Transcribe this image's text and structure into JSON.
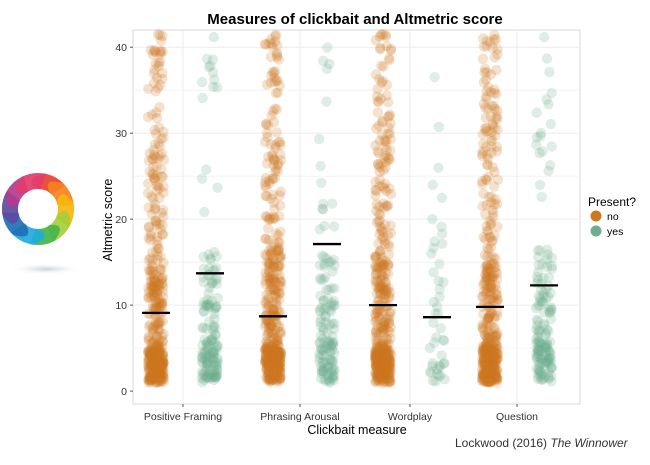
{
  "caption": {
    "author_year": "Lockwood (2016)",
    "journal": "The Winnower"
  },
  "logo": {
    "name": "altmetric-donut-logo",
    "colors": [
      "#e8412c",
      "#f58220",
      "#f6b60c",
      "#a6ce39",
      "#43b649",
      "#23a9dd",
      "#1f6fb5",
      "#5c4a9e",
      "#b43b8e",
      "#e23c6e"
    ]
  },
  "colors": {
    "no": "#cc7722",
    "yes": "#6fae8c",
    "mean_line": "#000000",
    "grid": "#ececec"
  },
  "chart_data": {
    "type": "scatter",
    "title": "Measures of clickbait and Altmetric score",
    "xlabel": "Clickbait measure",
    "ylabel": "Altmetric score",
    "ylim": [
      -1.5,
      42
    ],
    "yticks": [
      0,
      10,
      20,
      30,
      40
    ],
    "grid": true,
    "categories": [
      "Positive Framing",
      "Phrasing Arousal",
      "Wordplay",
      "Question"
    ],
    "legend": {
      "title": "Present?",
      "position": "right",
      "entries": [
        "no",
        "yes"
      ]
    },
    "series": [
      {
        "name": "no",
        "means": [
          9.1,
          8.7,
          10.0,
          9.8
        ]
      },
      {
        "name": "yes",
        "means": [
          13.7,
          17.1,
          8.6,
          12.3
        ]
      }
    ]
  }
}
